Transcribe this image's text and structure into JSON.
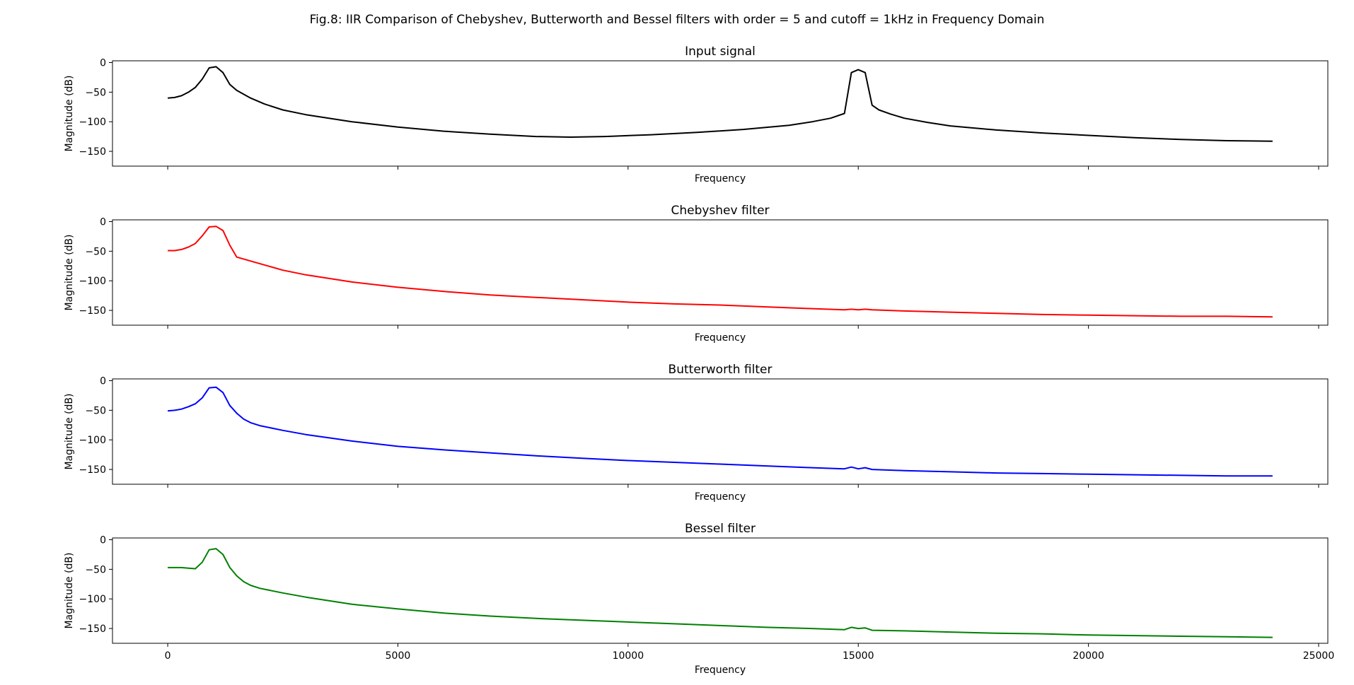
{
  "figure": {
    "title": "Fig.8: IIR Comparison of Chebyshev, Butterworth and Bessel filters with order = 5 and cutoff = 1kHz in Frequency Domain"
  },
  "chart_data": [
    {
      "type": "line",
      "title": "Input signal",
      "xlabel": "Frequency",
      "ylabel": "Magnitude (dB)",
      "xlim": [
        -1200,
        25200
      ],
      "ylim": [
        -175,
        3
      ],
      "xticks": [
        0,
        5000,
        10000,
        15000,
        20000,
        25000
      ],
      "xtick_labels_visible": false,
      "yticks": [
        0,
        -50,
        -100,
        -150
      ],
      "grid": false,
      "color": "#000000",
      "x": [
        0,
        150,
        300,
        450,
        600,
        750,
        900,
        1050,
        1200,
        1350,
        1500,
        1800,
        2100,
        2500,
        3000,
        4000,
        5000,
        6000,
        7000,
        8000,
        8750,
        9500,
        10500,
        11500,
        12500,
        13500,
        14000,
        14400,
        14700,
        14850,
        15000,
        15150,
        15300,
        15450,
        15700,
        16000,
        16500,
        17000,
        18000,
        19000,
        20000,
        21000,
        22000,
        23000,
        24000
      ],
      "y": [
        -60,
        -59,
        -56,
        -50,
        -42,
        -28,
        -9,
        -7,
        -17,
        -37,
        -47,
        -60,
        -70,
        -80,
        -88,
        -100,
        -109,
        -116,
        -121,
        -125,
        -126,
        -125,
        -122,
        -118,
        -113,
        -106,
        -100,
        -94,
        -86,
        -17,
        -12,
        -17,
        -72,
        -80,
        -87,
        -94,
        -101,
        -107,
        -114,
        -119,
        -123,
        -127,
        -130,
        -132,
        -133
      ]
    },
    {
      "type": "line",
      "title": "Chebyshev filter",
      "xlabel": "Frequency",
      "ylabel": "Magnitude (dB)",
      "xlim": [
        -1200,
        25200
      ],
      "ylim": [
        -175,
        3
      ],
      "xticks": [
        0,
        5000,
        10000,
        15000,
        20000,
        25000
      ],
      "xtick_labels_visible": false,
      "yticks": [
        0,
        -50,
        -100,
        -150
      ],
      "grid": false,
      "color": "#ff0000",
      "x": [
        0,
        150,
        300,
        450,
        600,
        750,
        900,
        1050,
        1200,
        1350,
        1500,
        2000,
        2500,
        3000,
        4000,
        5000,
        6000,
        7000,
        8000,
        9000,
        10000,
        11000,
        12000,
        13000,
        14000,
        14700,
        14850,
        15000,
        15150,
        15300,
        16000,
        17000,
        18000,
        19000,
        20000,
        21000,
        22000,
        23000,
        24000
      ],
      "y": [
        -49,
        -49,
        -47,
        -43,
        -37,
        -24,
        -9,
        -8,
        -15,
        -40,
        -60,
        -71,
        -82,
        -90,
        -102,
        -111,
        -118,
        -124,
        -128,
        -132,
        -136,
        -139,
        -141,
        -144,
        -147,
        -149,
        -148,
        -149,
        -148,
        -149,
        -151,
        -153,
        -155,
        -157,
        -158,
        -159,
        -160,
        -160,
        -161
      ]
    },
    {
      "type": "line",
      "title": "Butterworth filter",
      "xlabel": "Frequency",
      "ylabel": "Magnitude (dB)",
      "xlim": [
        -1200,
        25200
      ],
      "ylim": [
        -175,
        3
      ],
      "xticks": [
        0,
        5000,
        10000,
        15000,
        20000,
        25000
      ],
      "xtick_labels_visible": false,
      "yticks": [
        0,
        -50,
        -100,
        -150
      ],
      "grid": false,
      "color": "#0000ff",
      "x": [
        0,
        150,
        300,
        450,
        600,
        750,
        900,
        1050,
        1200,
        1350,
        1500,
        1650,
        1800,
        2000,
        2500,
        3000,
        4000,
        5000,
        6000,
        7000,
        8000,
        9000,
        10000,
        11000,
        12000,
        13000,
        14000,
        14700,
        14850,
        15000,
        15150,
        15300,
        16000,
        17000,
        18000,
        19000,
        20000,
        21000,
        22000,
        23000,
        24000
      ],
      "y": [
        -51,
        -50,
        -48,
        -44,
        -39,
        -29,
        -12,
        -11,
        -20,
        -42,
        -55,
        -65,
        -71,
        -76,
        -84,
        -91,
        -102,
        -111,
        -117,
        -122,
        -127,
        -131,
        -135,
        -138,
        -141,
        -144,
        -147,
        -149,
        -146,
        -149,
        -147,
        -150,
        -152,
        -154,
        -156,
        -157,
        -158,
        -159,
        -160,
        -161,
        -161
      ]
    },
    {
      "type": "line",
      "title": "Bessel filter",
      "xlabel": "Frequency",
      "ylabel": "Magnitude (dB)",
      "xlim": [
        -1200,
        25200
      ],
      "ylim": [
        -175,
        3
      ],
      "xticks": [
        0,
        5000,
        10000,
        15000,
        20000,
        25000
      ],
      "xtick_labels": [
        "0",
        "5000",
        "10000",
        "15000",
        "20000",
        "25000"
      ],
      "xtick_labels_visible": true,
      "yticks": [
        0,
        -50,
        -100,
        -150
      ],
      "grid": false,
      "color": "#008000",
      "x": [
        0,
        150,
        300,
        450,
        600,
        750,
        900,
        1050,
        1200,
        1350,
        1500,
        1650,
        1800,
        2000,
        2500,
        3000,
        4000,
        5000,
        6000,
        7000,
        8000,
        9000,
        10000,
        11000,
        12000,
        13000,
        14000,
        14700,
        14850,
        15000,
        15150,
        15300,
        16000,
        17000,
        18000,
        19000,
        20000,
        21000,
        22000,
        23000,
        24000
      ],
      "y": [
        -47,
        -47,
        -47,
        -48,
        -49,
        -38,
        -17,
        -15,
        -25,
        -47,
        -61,
        -71,
        -77,
        -82,
        -90,
        -97,
        -109,
        -117,
        -124,
        -129,
        -133,
        -136,
        -139,
        -142,
        -145,
        -148,
        -150,
        -152,
        -148,
        -150,
        -149,
        -153,
        -154,
        -156,
        -158,
        -159,
        -161,
        -162,
        -163,
        -164,
        -165
      ]
    }
  ]
}
